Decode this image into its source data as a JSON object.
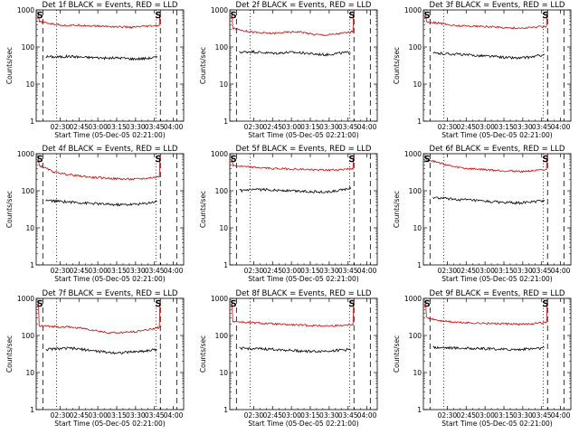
{
  "figure": {
    "colors": {
      "events": "#000000",
      "lld": "#d40000",
      "axes": "#000000",
      "background": "#ffffff"
    }
  },
  "chart_data": [
    {
      "type": "line",
      "title": "Det 1f BLACK = Events, RED = LLD",
      "xlabel": "Start Time (05-Dec-05 02:21:00)",
      "ylabel": "Counts/sec",
      "x_ticks": [
        "02:30",
        "02:45",
        "03:00",
        "03:15",
        "03:30",
        "03:45",
        "04:00"
      ],
      "y_ticks": [
        "1",
        "10",
        "100",
        "1000"
      ],
      "ylim": [
        1,
        1000
      ],
      "yscale": "log",
      "annotations": [
        "S",
        "S"
      ],
      "series": [
        {
          "name": "Events",
          "color": "#000000",
          "values": [
            55,
            54,
            56,
            53,
            52,
            50,
            51,
            48,
            49,
            53
          ]
        },
        {
          "name": "LLD",
          "color": "#d40000",
          "values": [
            480,
            420,
            380,
            390,
            370,
            360,
            350,
            340,
            360,
            380
          ]
        }
      ]
    },
    {
      "type": "line",
      "title": "Det 2f BLACK = Events, RED = LLD",
      "xlabel": "Start Time (05-Dec-05 02:21:00)",
      "ylabel": "Counts/sec",
      "x_ticks": [
        "02:30",
        "02:45",
        "03:00",
        "03:15",
        "03:30",
        "03:45",
        "04:00"
      ],
      "y_ticks": [
        "1",
        "10",
        "100",
        "1000"
      ],
      "ylim": [
        1,
        1000
      ],
      "yscale": "log",
      "annotations": [
        "S",
        "S"
      ],
      "series": [
        {
          "name": "Events",
          "color": "#000000",
          "values": [
            72,
            75,
            70,
            68,
            72,
            70,
            65,
            62,
            68,
            72
          ]
        },
        {
          "name": "LLD",
          "color": "#d40000",
          "values": [
            320,
            270,
            240,
            235,
            250,
            260,
            220,
            210,
            230,
            260
          ]
        }
      ]
    },
    {
      "type": "line",
      "title": "Det 3f BLACK = Events, RED = LLD",
      "xlabel": "Start Time (05-Dec-05 02:21:00)",
      "ylabel": "Counts/sec",
      "x_ticks": [
        "02:30",
        "02:45",
        "03:00",
        "03:15",
        "03:30",
        "03:45",
        "04:00"
      ],
      "y_ticks": [
        "1",
        "10",
        "100",
        "1000"
      ],
      "ylim": [
        1,
        1000
      ],
      "yscale": "log",
      "annotations": [
        "S",
        "S"
      ],
      "series": [
        {
          "name": "Events",
          "color": "#000000",
          "values": [
            68,
            66,
            64,
            60,
            58,
            55,
            52,
            50,
            54,
            62
          ]
        },
        {
          "name": "LLD",
          "color": "#d40000",
          "values": [
            480,
            440,
            380,
            370,
            360,
            350,
            330,
            320,
            340,
            360
          ]
        }
      ]
    },
    {
      "type": "line",
      "title": "Det 4f BLACK = Events, RED = LLD",
      "xlabel": "Start Time (05-Dec-05 02:21:00)",
      "ylabel": "Counts/sec",
      "x_ticks": [
        "02:30",
        "02:45",
        "03:00",
        "03:15",
        "03:30",
        "03:45",
        "04:00"
      ],
      "y_ticks": [
        "1",
        "10",
        "100",
        "1000"
      ],
      "ylim": [
        1,
        1000
      ],
      "yscale": "log",
      "annotations": [
        "S",
        "S"
      ],
      "series": [
        {
          "name": "Events",
          "color": "#000000",
          "values": [
            55,
            52,
            50,
            47,
            45,
            43,
            42,
            43,
            45,
            52
          ]
        },
        {
          "name": "LLD",
          "color": "#d40000",
          "values": [
            480,
            330,
            280,
            250,
            230,
            220,
            210,
            205,
            215,
            240
          ]
        }
      ]
    },
    {
      "type": "line",
      "title": "Det 5f BLACK = Events, RED = LLD",
      "xlabel": "Start Time (05-Dec-05 02:21:00)",
      "ylabel": "Counts/sec",
      "x_ticks": [
        "02:30",
        "02:45",
        "03:00",
        "03:15",
        "03:30",
        "03:45",
        "04:00"
      ],
      "y_ticks": [
        "1",
        "10",
        "100",
        "1000"
      ],
      "ylim": [
        1,
        1000
      ],
      "yscale": "log",
      "annotations": [
        "S",
        "S"
      ],
      "series": [
        {
          "name": "Events",
          "color": "#000000",
          "values": [
            100,
            105,
            108,
            104,
            100,
            98,
            95,
            92,
            100,
            120
          ]
        },
        {
          "name": "LLD",
          "color": "#d40000",
          "values": [
            480,
            440,
            420,
            400,
            390,
            380,
            370,
            360,
            370,
            400
          ]
        }
      ]
    },
    {
      "type": "line",
      "title": "Det 6f BLACK = Events, RED = LLD",
      "xlabel": "Start Time (05-Dec-05 02:21:00)",
      "ylabel": "Counts/sec",
      "x_ticks": [
        "02:30",
        "02:45",
        "03:00",
        "03:15",
        "03:30",
        "03:45",
        "04:00"
      ],
      "y_ticks": [
        "1",
        "10",
        "100",
        "1000"
      ],
      "ylim": [
        1,
        1000
      ],
      "yscale": "log",
      "annotations": [
        "S",
        "S"
      ],
      "series": [
        {
          "name": "Events",
          "color": "#000000",
          "values": [
            65,
            62,
            58,
            56,
            52,
            50,
            48,
            47,
            50,
            55
          ]
        },
        {
          "name": "LLD",
          "color": "#d40000",
          "values": [
            700,
            560,
            450,
            400,
            380,
            360,
            345,
            335,
            345,
            365
          ]
        }
      ]
    },
    {
      "type": "line",
      "title": "Det 7f BLACK = Events, RED = LLD",
      "xlabel": "Start Time (05-Dec-05 02:21:00)",
      "ylabel": "Counts/sec",
      "x_ticks": [
        "02:30",
        "02:45",
        "03:00",
        "03:15",
        "03:30",
        "03:45",
        "04:00"
      ],
      "y_ticks": [
        "1",
        "10",
        "100",
        "1000"
      ],
      "ylim": [
        1,
        1000
      ],
      "yscale": "log",
      "annotations": [
        "S",
        "S"
      ],
      "series": [
        {
          "name": "Events",
          "color": "#000000",
          "values": [
            42,
            44,
            45,
            42,
            38,
            35,
            34,
            36,
            38,
            42
          ]
        },
        {
          "name": "LLD",
          "color": "#d40000",
          "values": [
            180,
            175,
            170,
            160,
            140,
            120,
            118,
            125,
            140,
            165
          ]
        }
      ]
    },
    {
      "type": "line",
      "title": "Det 8f BLACK = Events, RED = LLD",
      "xlabel": "Start Time (05-Dec-05 02:21:00)",
      "ylabel": "Counts/sec",
      "x_ticks": [
        "02:30",
        "02:45",
        "03:00",
        "03:15",
        "03:30",
        "03:45",
        "04:00"
      ],
      "y_ticks": [
        "1",
        "10",
        "100",
        "1000"
      ],
      "ylim": [
        1,
        1000
      ],
      "yscale": "log",
      "annotations": [
        "S",
        "S"
      ],
      "series": [
        {
          "name": "Events",
          "color": "#000000",
          "values": [
            45,
            44,
            43,
            42,
            40,
            38,
            37,
            38,
            40,
            42
          ]
        },
        {
          "name": "LLD",
          "color": "#d40000",
          "values": [
            240,
            225,
            215,
            205,
            195,
            190,
            185,
            180,
            185,
            200
          ]
        }
      ]
    },
    {
      "type": "line",
      "title": "Det 9f BLACK = Events, RED = LLD",
      "xlabel": "Start Time (05-Dec-05 02:21:00)",
      "ylabel": "Counts/sec",
      "x_ticks": [
        "02:30",
        "02:45",
        "03:00",
        "03:15",
        "03:30",
        "03:45",
        "04:00"
      ],
      "y_ticks": [
        "1",
        "10",
        "100",
        "1000"
      ],
      "ylim": [
        1,
        1000
      ],
      "yscale": "log",
      "annotations": [
        "S",
        "S"
      ],
      "series": [
        {
          "name": "Events",
          "color": "#000000",
          "values": [
            48,
            47,
            46,
            45,
            44,
            43,
            42,
            42,
            44,
            46
          ]
        },
        {
          "name": "LLD",
          "color": "#d40000",
          "values": [
            300,
            250,
            230,
            220,
            215,
            210,
            205,
            200,
            210,
            220
          ]
        }
      ]
    }
  ]
}
